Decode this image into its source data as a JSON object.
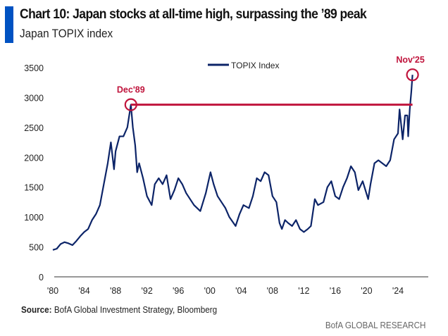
{
  "header": {
    "title": "Chart 10: Japan stocks at all-time high, surpassing the ’89 peak",
    "subtitle": "Japan TOPIX index"
  },
  "footer": {
    "source_label": "Source:",
    "source_text": " BofA Global Investment Strategy, Bloomberg",
    "brand": "BofA GLOBAL RESEARCH"
  },
  "colors": {
    "series": "#0c2468",
    "annotation": "#c0143c",
    "accent": "#0052c2",
    "axis": "#777777"
  },
  "chart_data": {
    "type": "line",
    "title": "Chart 10: Japan stocks at all-time high, surpassing the ’89 peak",
    "subtitle": "Japan TOPIX index",
    "legend": {
      "entries": [
        "TOPIX Index"
      ],
      "placement": "top-center"
    },
    "ylim": [
      0,
      3500
    ],
    "yticks": [
      0,
      500,
      1000,
      1500,
      2000,
      2500,
      3000,
      3500
    ],
    "xlim": [
      1980,
      2027
    ],
    "xticks": [
      {
        "v": 1980,
        "l": "'80"
      },
      {
        "v": 1984,
        "l": "'84"
      },
      {
        "v": 1988,
        "l": "'88"
      },
      {
        "v": 1992,
        "l": "'92"
      },
      {
        "v": 1996,
        "l": "'96"
      },
      {
        "v": 2000,
        "l": "'00"
      },
      {
        "v": 2004,
        "l": "'04"
      },
      {
        "v": 2008,
        "l": "'08"
      },
      {
        "v": 2012,
        "l": "'12"
      },
      {
        "v": 2016,
        "l": "'16"
      },
      {
        "v": 2020,
        "l": "'20"
      },
      {
        "v": 2024,
        "l": "'24"
      }
    ],
    "series": [
      {
        "name": "TOPIX Index",
        "x": [
          1980,
          1980.5,
          1981,
          1981.5,
          1982,
          1982.5,
          1983,
          1983.5,
          1984,
          1984.5,
          1985,
          1985.5,
          1986,
          1986.5,
          1987,
          1987.4,
          1987.8,
          1988,
          1988.5,
          1989,
          1989.5,
          1989.95,
          1990.2,
          1990.5,
          1990.75,
          1991,
          1991.5,
          1992,
          1992.6,
          1993,
          1993.5,
          1994,
          1994.5,
          1995,
          1995.5,
          1996,
          1996.5,
          1997,
          1997.5,
          1998,
          1998.8,
          1999.5,
          2000.1,
          2000.5,
          2001,
          2001.5,
          2002,
          2002.5,
          2003.3,
          2003.8,
          2004.3,
          2005,
          2005.5,
          2006,
          2006.5,
          2007,
          2007.5,
          2008,
          2008.5,
          2008.9,
          2009.2,
          2009.6,
          2010,
          2010.5,
          2011,
          2011.5,
          2012,
          2012.5,
          2012.9,
          2013.4,
          2013.8,
          2014.5,
          2015,
          2015.5,
          2016,
          2016.5,
          2017,
          2017.5,
          2018,
          2018.5,
          2018.95,
          2019.5,
          2020.2,
          2020.5,
          2021,
          2021.5,
          2022,
          2022.5,
          2023,
          2023.5,
          2024,
          2024.2,
          2024.6,
          2024.9,
          2025.2,
          2025.3,
          2025.5,
          2025.7,
          2025.85
        ],
        "values": [
          450,
          470,
          550,
          580,
          560,
          530,
          600,
          680,
          750,
          800,
          950,
          1050,
          1200,
          1550,
          1900,
          2250,
          1800,
          2100,
          2350,
          2350,
          2500,
          2880,
          2500,
          2200,
          1750,
          1900,
          1650,
          1350,
          1200,
          1550,
          1650,
          1550,
          1700,
          1300,
          1450,
          1650,
          1550,
          1400,
          1300,
          1200,
          1100,
          1400,
          1750,
          1550,
          1350,
          1250,
          1150,
          1000,
          850,
          1050,
          1200,
          1150,
          1350,
          1650,
          1600,
          1750,
          1700,
          1350,
          1250,
          900,
          800,
          950,
          900,
          850,
          950,
          800,
          750,
          800,
          850,
          1300,
          1200,
          1250,
          1500,
          1600,
          1350,
          1300,
          1500,
          1650,
          1850,
          1750,
          1450,
          1600,
          1300,
          1550,
          1900,
          1950,
          1900,
          1850,
          1950,
          2300,
          2400,
          2800,
          2300,
          2700,
          2700,
          2350,
          2800,
          3100,
          3380
        ]
      }
    ],
    "annotations": [
      {
        "label": "Dec'89",
        "x": 1989.95,
        "y": 2880
      },
      {
        "label": "Nov'25",
        "x": 2025.85,
        "y": 3380
      }
    ],
    "reference_line": {
      "y": 2880,
      "x": [
        1989.95,
        2025.85
      ]
    },
    "grid": false
  }
}
